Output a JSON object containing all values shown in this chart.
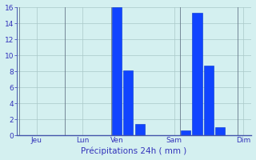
{
  "background_color": "#d4f0f0",
  "bar_color": "#1144ff",
  "bar_edge_color": "#0033cc",
  "grid_color": "#aac8c8",
  "text_color": "#3333bb",
  "spine_color": "#4455aa",
  "ylim": [
    0,
    16
  ],
  "yticks": [
    0,
    2,
    4,
    6,
    8,
    10,
    12,
    14,
    16
  ],
  "n_bars": 20,
  "bar_values": [
    0,
    0,
    0,
    0,
    0,
    0,
    0,
    0,
    16,
    8.1,
    1.4,
    0,
    0,
    0,
    0.6,
    15.3,
    8.7,
    1.0,
    0,
    0
  ],
  "day_labels": [
    "Jeu",
    "Lun",
    "Ven",
    "Sam",
    "Dim"
  ],
  "day_tick_positions": [
    1,
    5,
    8,
    13,
    19
  ],
  "vline_positions": [
    -0.5,
    3.5,
    7.5,
    13.5,
    18.5
  ],
  "xlabel": "Précipitations 24h ( mm )"
}
